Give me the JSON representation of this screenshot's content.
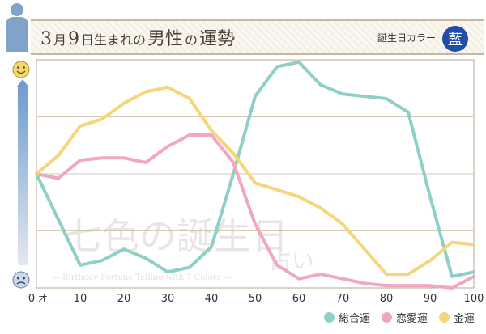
{
  "header": {
    "month": "3",
    "month_unit": "月",
    "day": "9",
    "day_unit": "日生まれの",
    "gender": "男性",
    "particle": "の",
    "fortune": "運勢",
    "color_label": "誕生日カラー",
    "color_name": "藍",
    "color_hex": "#1f4ea8"
  },
  "watermark": {
    "main": "七色の誕生日",
    "sub": "占い",
    "caption": "— Birthday Fortune Telling with 7 Colors —"
  },
  "chart_data": {
    "type": "line",
    "x": [
      0,
      5,
      10,
      15,
      20,
      25,
      30,
      35,
      40,
      45,
      50,
      55,
      60,
      65,
      70,
      75,
      80,
      85,
      90,
      95,
      100
    ],
    "x_tick_labels": [
      "0",
      "10",
      "20",
      "30",
      "40",
      "50",
      "60",
      "70",
      "80",
      "90",
      "100"
    ],
    "x_tick_values": [
      0,
      10,
      20,
      30,
      40,
      50,
      60,
      70,
      80,
      90,
      100
    ],
    "x_unit": "才",
    "xlim": [
      0,
      100
    ],
    "ylim": [
      0,
      100
    ],
    "grid": true,
    "legend_position": "bottom-right",
    "series": [
      {
        "name": "総合運",
        "color": "#8fd0c6",
        "values": [
          50,
          30,
          10,
          12,
          17,
          13,
          7,
          9,
          18,
          50,
          84,
          97,
          99,
          89,
          85,
          84,
          83,
          77,
          40,
          5,
          7
        ]
      },
      {
        "name": "恋愛運",
        "color": "#f2a7c0",
        "values": [
          50,
          48,
          56,
          57,
          57,
          55,
          62,
          67,
          67,
          55,
          28,
          10,
          4,
          6,
          4,
          2,
          1,
          1,
          1,
          0,
          5
        ]
      },
      {
        "name": "金運",
        "color": "#f5d67a",
        "values": [
          50,
          58,
          71,
          74,
          81,
          86,
          88,
          83,
          69,
          59,
          46,
          43,
          40,
          35,
          28,
          17,
          6,
          6,
          12,
          20,
          19
        ]
      }
    ]
  }
}
